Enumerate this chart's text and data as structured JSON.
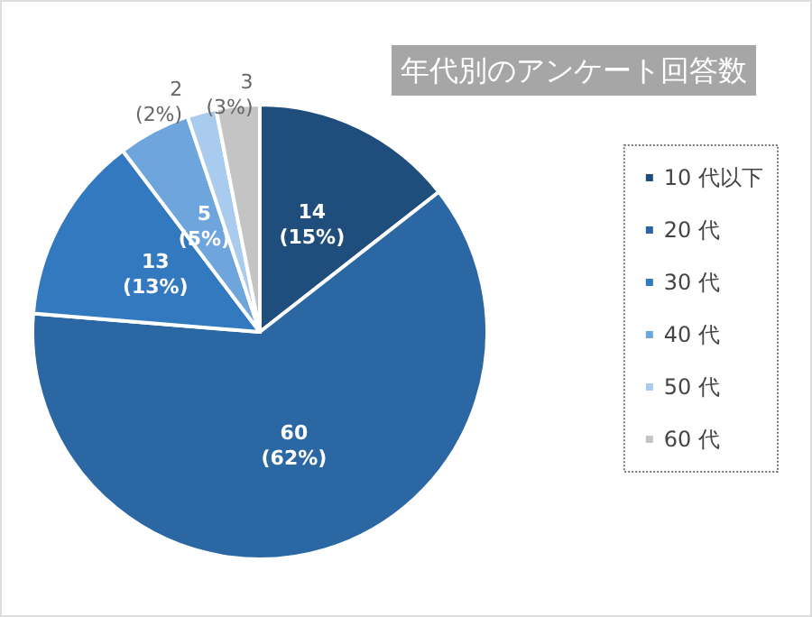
{
  "chart_data": {
    "type": "pie",
    "title": "年代別のアンケート回答数",
    "categories": [
      "10 代以下",
      "20 代",
      "30 代",
      "40 代",
      "50 代",
      "60 代"
    ],
    "values": [
      14,
      60,
      13,
      5,
      2,
      3
    ],
    "value_labels": [
      "14\n(15%)",
      "60\n(62%)",
      "13\n(13%)",
      "5\n(5%)",
      "2\n(2%)",
      "3\n(3%)"
    ],
    "colors": [
      "#1f4e7c",
      "#2b67a3",
      "#3379c0",
      "#6ea5dc",
      "#a9cbed",
      "#c4c4c4"
    ],
    "legend": "right"
  }
}
